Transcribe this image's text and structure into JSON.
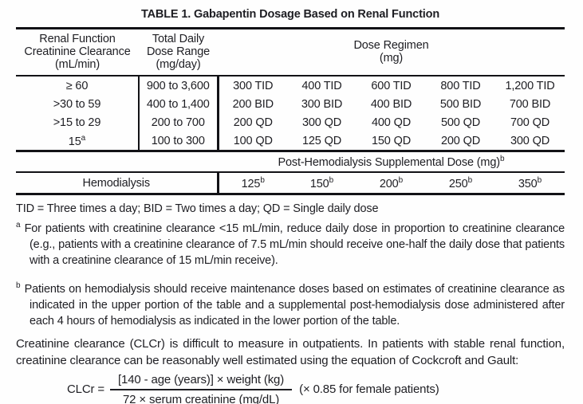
{
  "page": {
    "title": "TABLE 1. Gabapentin Dosage Based on Renal Function"
  },
  "table": {
    "header": {
      "renal_function": [
        "Renal Function",
        "Creatinine Clearance",
        "(mL/min)"
      ],
      "daily_dose": [
        "Total Daily",
        "Dose Range",
        "(mg/day)"
      ],
      "dose_regimen": [
        "Dose Regimen",
        "(mg)"
      ]
    },
    "rows": [
      {
        "cc": "≥ 60",
        "range": "900 to 3,600",
        "doses": [
          "300 TID",
          "400 TID",
          "600 TID",
          "800 TID",
          "1,200 TID"
        ]
      },
      {
        "cc": ">30 to 59",
        "range": "400 to 1,400",
        "doses": [
          "200 BID",
          "300 BID",
          "400 BID",
          "500 BID",
          "700 BID"
        ]
      },
      {
        "cc": ">15 to 29",
        "range": "200 to 700",
        "doses": [
          "200 QD",
          "300 QD",
          "400 QD",
          "500 QD",
          "700 QD"
        ]
      },
      {
        "cc": "15",
        "cc_sup": "a",
        "range": "100 to 300",
        "doses": [
          "100 QD",
          "125 QD",
          "150 QD",
          "200 QD",
          "300 QD"
        ]
      }
    ],
    "post_hemodialysis": {
      "label": "Post-Hemodialysis Supplemental Dose (mg)",
      "sup": "b"
    },
    "hemodialysis": {
      "label": "Hemodialysis",
      "doses": [
        {
          "v": "125",
          "s": "b"
        },
        {
          "v": "150",
          "s": "b"
        },
        {
          "v": "200",
          "s": "b"
        },
        {
          "v": "250",
          "s": "b"
        },
        {
          "v": "350",
          "s": "b"
        }
      ]
    }
  },
  "footnotes": {
    "abbreviations": "TID = Three times a day; BID = Two times a day; QD = Single daily dose",
    "a": {
      "marker": "a",
      "text": "For patients with creatinine clearance <15 mL/min, reduce daily dose in proportion to creatinine clearance (e.g., patients with a creatinine clearance of 7.5 mL/min should receive one-half the daily dose that patients with a creatinine clearance of 15 mL/min receive)."
    },
    "b": {
      "marker": "b",
      "text": "Patients on hemodialysis should receive maintenance doses based on estimates of creatinine clearance as indicated in the upper portion of the table and a supplemental post-hemodialysis dose administered after each 4 hours of hemodialysis as indicated in the lower portion of the table."
    }
  },
  "paragraph": "Creatinine clearance (CLCr) is difficult to measure in outpatients. In patients with stable renal function, creatinine clearance can be reasonably well estimated using the equation of Cockcroft and Gault:",
  "formula": {
    "lhs": "CLCr =",
    "numerator": "[140 - age (years)] × weight (kg)",
    "denominator": "72 × serum creatinine (mg/dL)",
    "suffix": "(× 0.85 for female patients)"
  },
  "colors": {
    "text": "#1e1e23",
    "line": "#121216",
    "background": "#fefefe"
  }
}
